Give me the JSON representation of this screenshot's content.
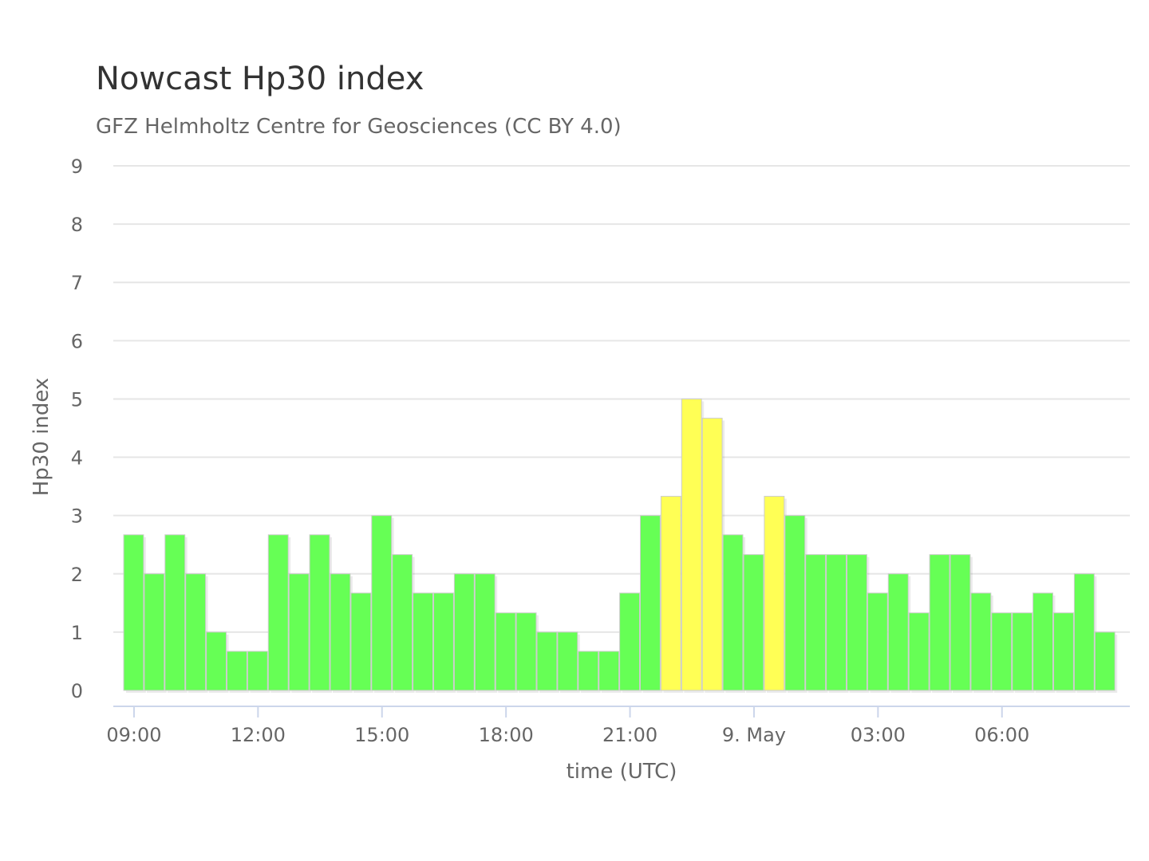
{
  "chart_data": {
    "type": "bar",
    "title": "Nowcast Hp30 index",
    "subtitle": "GFZ Helmholtz Centre for Geosciences (CC BY 4.0)",
    "xlabel": "time (UTC)",
    "ylabel": "Hp30 index",
    "ylim": [
      0,
      9
    ],
    "yticks": [
      "0",
      "1",
      "2",
      "3",
      "4",
      "5",
      "6",
      "7",
      "8",
      "9"
    ],
    "xtick_labels": [
      {
        "label": "09:00",
        "hours_from_start": 0.25
      },
      {
        "label": "12:00",
        "hours_from_start": 3.25
      },
      {
        "label": "15:00",
        "hours_from_start": 6.25
      },
      {
        "label": "18:00",
        "hours_from_start": 9.25
      },
      {
        "label": "21:00",
        "hours_from_start": 12.25
      },
      {
        "label": "9. May",
        "hours_from_start": 15.25
      },
      {
        "label": "03:00",
        "hours_from_start": 18.25
      },
      {
        "label": "06:00",
        "hours_from_start": 21.25
      }
    ],
    "interval_minutes": 30,
    "values": [
      2.67,
      2,
      2.67,
      2,
      1,
      0.67,
      0.67,
      2.67,
      2,
      2.67,
      2,
      1.67,
      3,
      2.33,
      1.67,
      1.67,
      2,
      2,
      1.33,
      1.33,
      1,
      1,
      0.67,
      0.67,
      1.67,
      3,
      3.33,
      5,
      4.67,
      2.67,
      2.33,
      3.33,
      3,
      2.33,
      2.33,
      2.33,
      1.67,
      2,
      1.33,
      2.33,
      2.33,
      1.67,
      1.33,
      1.33,
      1.67,
      1.33,
      2,
      1
    ],
    "colors": {
      "low": "#66ff55",
      "elevated": "#ffff55",
      "bar_border": "#cccccc",
      "grid": "#e6e6e6",
      "axis": "#ccd6eb"
    },
    "color_threshold": 3.33,
    "grid": true,
    "legend": "none"
  }
}
